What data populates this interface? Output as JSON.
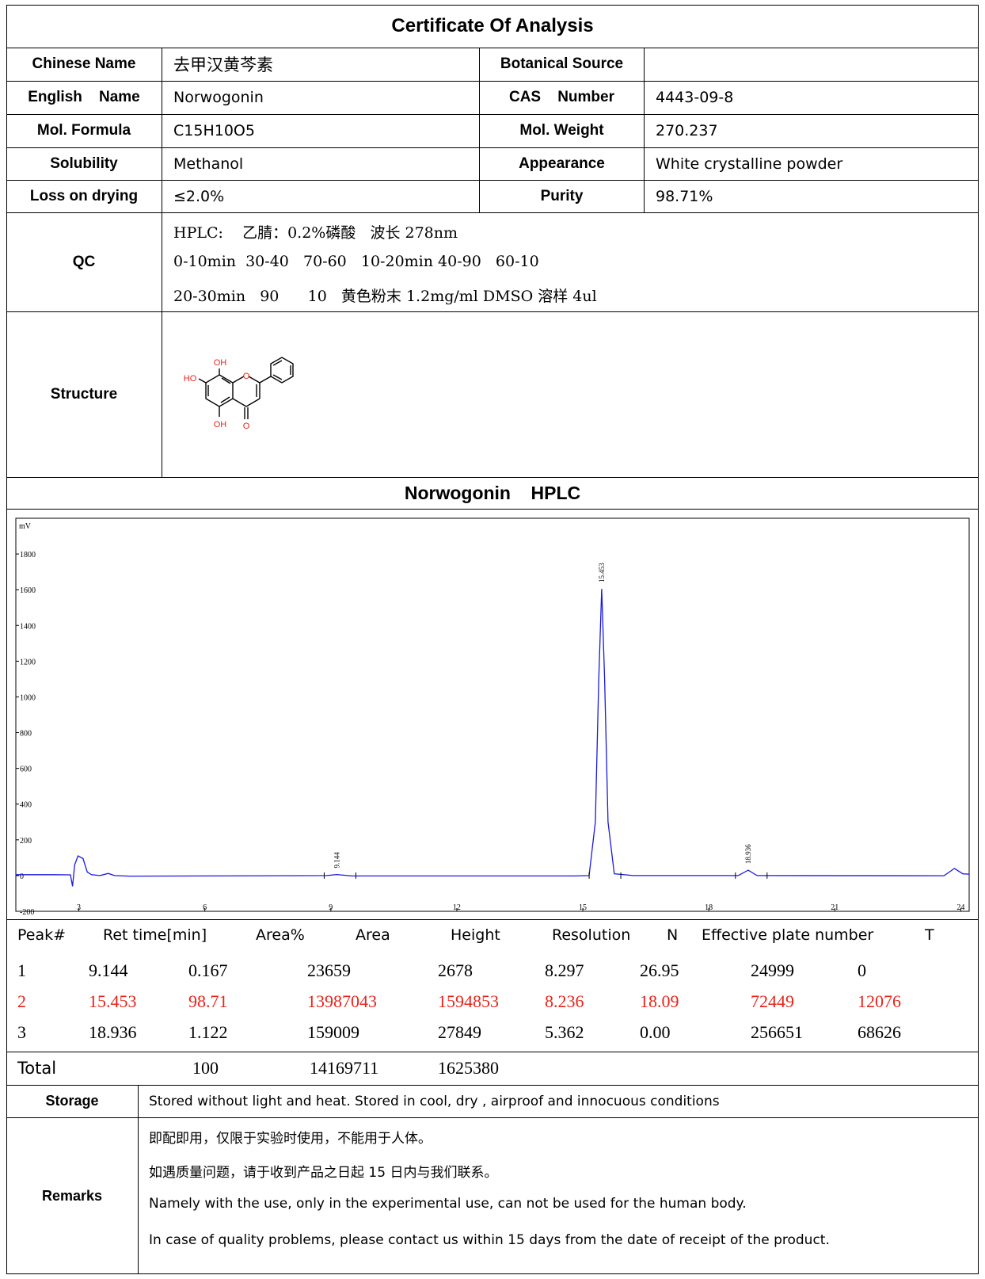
{
  "title": "Certificate Of Analysis",
  "rows": [
    {
      "l1": "Chinese Name",
      "v1": "去甲汉黄芩素",
      "l2": "Botanical Source",
      "v2": ""
    },
    {
      "l1": "English    Name",
      "v1": "Norwogonin",
      "l2": "CAS    Number",
      "v2": "4443-09-8"
    },
    {
      "l1": "Mol. Formula",
      "v1": "C15H10O5",
      "l2": "Mol. Weight",
      "v2": "270.237"
    },
    {
      "l1": "Solubility",
      "v1": "Methanol",
      "l2": "Appearance",
      "v2": "White crystalline powder"
    },
    {
      "l1": "Loss on drying",
      "v1": "≤2.0%",
      "l2": "Purity",
      "v2": "98.71%"
    }
  ],
  "qc": {
    "label": "QC",
    "line1": "HPLC:    乙腈：0.2%磷酸   波长 278nm",
    "line2": "0-10min  30-40   70-60   10-20min 40-90   60-10",
    "line3": "20-30min   90      10   黄色粉末 1.2mg/ml DMSO 溶样 4ul"
  },
  "structure": {
    "label": "Structure",
    "oh_top": "OH",
    "ho_left": "HO",
    "oh_bottom": "OH",
    "o_ring": "O",
    "o_carbonyl": "O"
  },
  "hplc_title": "Norwogonin    HPLC",
  "chart_data": {
    "type": "line",
    "ylabel": "mV",
    "xlim": [
      1.5,
      24.2
    ],
    "ylim": [
      -200,
      2000
    ],
    "xticks": [
      3,
      6,
      9,
      12,
      15,
      18,
      21,
      24
    ],
    "yticks": [
      -200,
      0,
      200,
      400,
      600,
      800,
      1000,
      1200,
      1400,
      1600,
      1800
    ],
    "series": [
      {
        "points": [
          [
            1.5,
            5
          ],
          [
            2.4,
            5
          ],
          [
            2.8,
            4
          ],
          [
            2.85,
            -60
          ],
          [
            2.9,
            60
          ],
          [
            2.98,
            110
          ],
          [
            3.1,
            95
          ],
          [
            3.2,
            20
          ],
          [
            3.3,
            5
          ],
          [
            3.5,
            0
          ],
          [
            3.7,
            12
          ],
          [
            3.85,
            0
          ],
          [
            4.2,
            -3
          ],
          [
            8.9,
            0
          ],
          [
            9.14,
            6
          ],
          [
            9.4,
            0
          ],
          [
            9.5,
            -2
          ],
          [
            14.8,
            -2
          ],
          [
            15.15,
            0
          ],
          [
            15.3,
            300
          ],
          [
            15.38,
            1100
          ],
          [
            15.45,
            1605
          ],
          [
            15.52,
            1100
          ],
          [
            15.6,
            300
          ],
          [
            15.75,
            10
          ],
          [
            16.2,
            0
          ],
          [
            18.7,
            0
          ],
          [
            18.94,
            30
          ],
          [
            19.15,
            0
          ],
          [
            23.6,
            -1
          ],
          [
            23.85,
            40
          ],
          [
            24.05,
            10
          ],
          [
            24.2,
            8
          ]
        ]
      }
    ],
    "peak_labels": [
      {
        "x": 9.144,
        "y": 6,
        "text": "9.144"
      },
      {
        "x": 15.453,
        "y": 1605,
        "text": "15.453"
      },
      {
        "x": 18.936,
        "y": 30,
        "text": "18.936"
      }
    ]
  },
  "peak_table": {
    "headers": [
      "Peak#",
      "Ret time[min]",
      "Area%",
      "Area",
      "Height",
      "Resolution",
      "N",
      "Effective plate number",
      "T"
    ],
    "rows": [
      [
        "1",
        "9.144",
        "0.167",
        "23659",
        "2678",
        "8.297",
        "26.95",
        "24999",
        "0"
      ],
      [
        "2",
        "15.453",
        "98.71",
        "13987043",
        "1594853",
        "8.236",
        "18.09",
        "72449",
        "12076"
      ],
      [
        "3",
        "18.936",
        "1.122",
        "159009",
        "27849",
        "5.362",
        "0.00",
        "256651",
        "68626"
      ]
    ],
    "total": [
      "Total",
      "100",
      "14169711",
      "1625380"
    ],
    "highlight_color": "#e8231b"
  },
  "storage": {
    "label": "Storage",
    "text": "Stored without light and heat. Stored in cool, dry , airproof and innocuous conditions"
  },
  "remarks": {
    "label": "Remarks",
    "lines": [
      "即配即用，仅限于实验时使用，不能用于人体。",
      "如遇质量问题，请于收到产品之日起 15 日内与我们联系。",
      "Namely with the use, only in the experimental use, can not be used for the human body.",
      "In case of quality problems, please contact us within 15 days from the date of receipt of the product."
    ]
  }
}
